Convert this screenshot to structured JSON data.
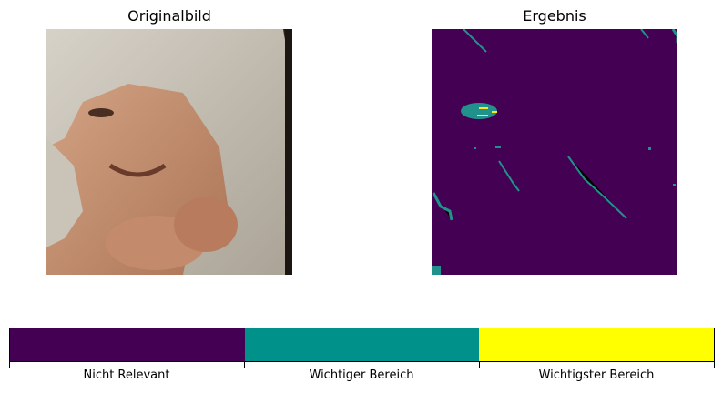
{
  "panels": {
    "left_title": "Originalbild",
    "right_title": "Ergebnis"
  },
  "colorbar": {
    "segments": [
      {
        "label": "Nicht Relevant",
        "color": "#440154"
      },
      {
        "label": "Wichtiger Bereich",
        "color": "#21918c"
      },
      {
        "label": "Wichtigster Bereich",
        "color": "#fde725"
      }
    ]
  }
}
